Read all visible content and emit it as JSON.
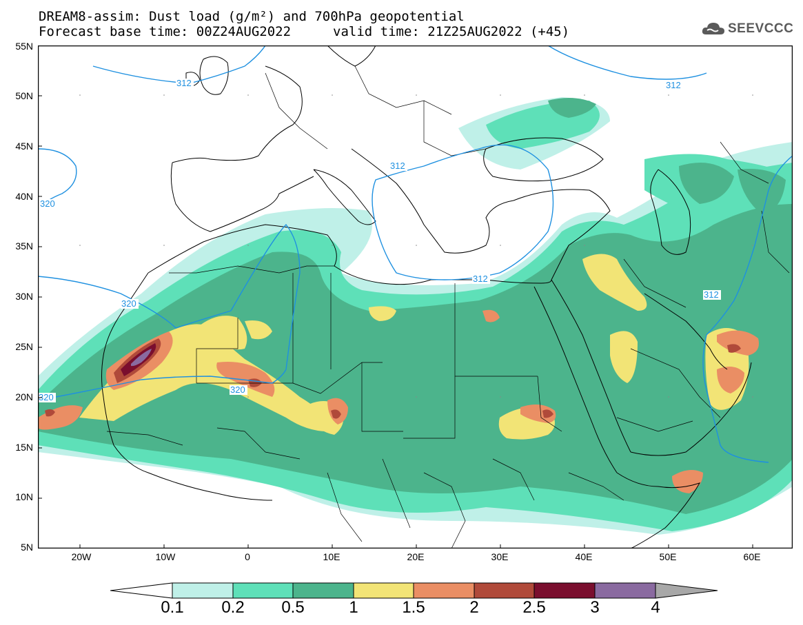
{
  "header": {
    "title_line1": "DREAM8-assim: Dust load (g/m²) and 700hPa geopotential",
    "title_line2": "Forecast base time: 00Z24AUG2022",
    "valid_time": "valid time: 21Z25AUG2022 (+45)",
    "logo_text": "SEEVCCC",
    "logo_icon": "cloud-icon"
  },
  "axes": {
    "lat_labels": [
      "55N",
      "50N",
      "45N",
      "40N",
      "35N",
      "30N",
      "25N",
      "20N",
      "15N",
      "10N",
      "5N"
    ],
    "lon_labels": [
      "20W",
      "10W",
      "0",
      "10E",
      "20E",
      "30E",
      "40E",
      "50E",
      "60E"
    ]
  },
  "contour_labels": [
    "312",
    "320",
    "312",
    "312",
    "320",
    "320",
    "312",
    "320",
    "312"
  ],
  "colorbar": {
    "labels": [
      "0.1",
      "0.2",
      "0.5",
      "1",
      "1.5",
      "2",
      "2.5",
      "3",
      "4"
    ],
    "colors": [
      "#bff0e8",
      "#5ee0b8",
      "#4cb48c",
      "#f2e476",
      "#ea8e64",
      "#b04a3a",
      "#7a0e2e",
      "#8a6aa0"
    ],
    "under_color": "#ffffff",
    "over_color": "#a8a8a8"
  },
  "map_extent": {
    "lon_range": [
      -25,
      65
    ],
    "lat_range": [
      5,
      55
    ]
  }
}
